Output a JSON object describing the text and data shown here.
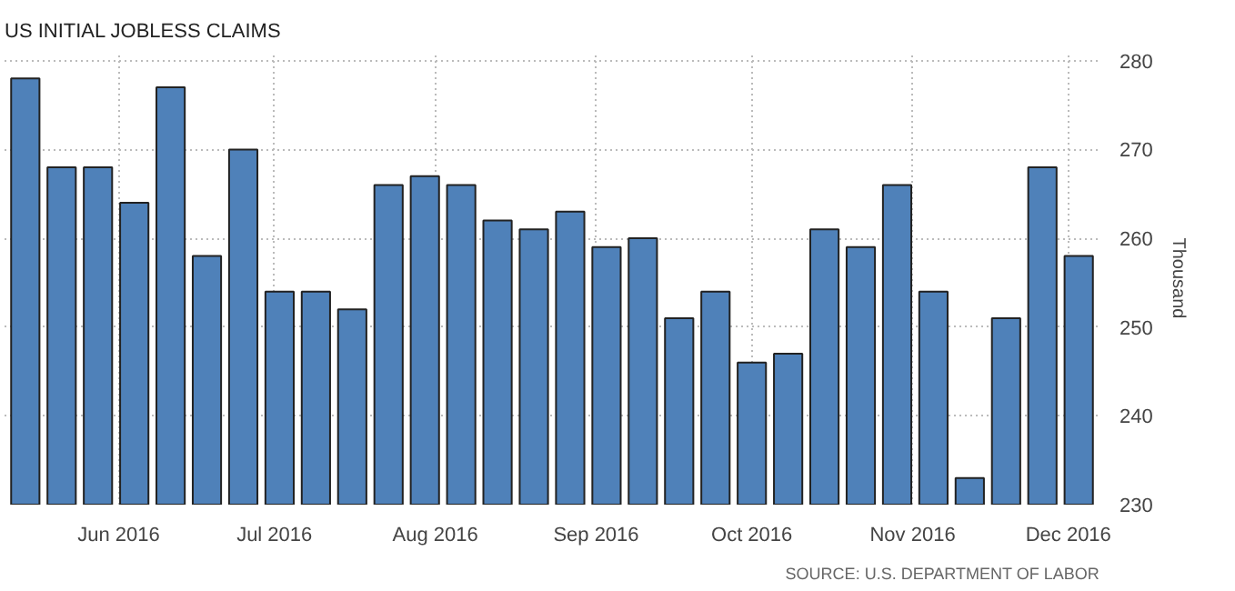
{
  "chart_data": {
    "type": "bar",
    "title": "US INITIAL JOBLESS CLAIMS",
    "ylabel": "Thousand",
    "x": [
      "2016-05-14",
      "2016-05-21",
      "2016-05-28",
      "2016-06-04",
      "2016-06-11",
      "2016-06-18",
      "2016-06-25",
      "2016-07-02",
      "2016-07-09",
      "2016-07-16",
      "2016-07-23",
      "2016-07-30",
      "2016-08-06",
      "2016-08-13",
      "2016-08-20",
      "2016-08-27",
      "2016-09-03",
      "2016-09-10",
      "2016-09-17",
      "2016-09-24",
      "2016-10-01",
      "2016-10-08",
      "2016-10-15",
      "2016-10-22",
      "2016-10-29",
      "2016-11-05",
      "2016-11-12",
      "2016-11-19",
      "2016-11-26",
      "2016-12-03"
    ],
    "values": [
      278,
      268,
      268,
      264,
      277,
      258,
      270,
      254,
      254,
      252,
      266,
      267,
      266,
      262,
      261,
      263,
      259,
      260,
      251,
      254,
      246,
      247,
      261,
      259,
      266,
      254,
      233,
      251,
      268,
      258
    ],
    "color": "#4f81b9",
    "xlim": [
      "2016-05-10",
      "2016-12-07"
    ],
    "xticks": [
      {
        "value": "2016-06-01",
        "label": "Jun 2016"
      },
      {
        "value": "2016-07-01",
        "label": "Jul 2016"
      },
      {
        "value": "2016-08-01",
        "label": "Aug 2016"
      },
      {
        "value": "2016-09-01",
        "label": "Sep 2016"
      },
      {
        "value": "2016-10-01",
        "label": "Oct 2016"
      },
      {
        "value": "2016-11-01",
        "label": "Nov 2016"
      },
      {
        "value": "2016-12-01",
        "label": "Dec 2016"
      }
    ],
    "ylim": [
      230,
      281
    ],
    "yticks": [
      230,
      240,
      250,
      260,
      270,
      280
    ],
    "grid": true,
    "annotations": [
      "SOURCE: U.S. DEPARTMENT OF LABOR"
    ]
  }
}
